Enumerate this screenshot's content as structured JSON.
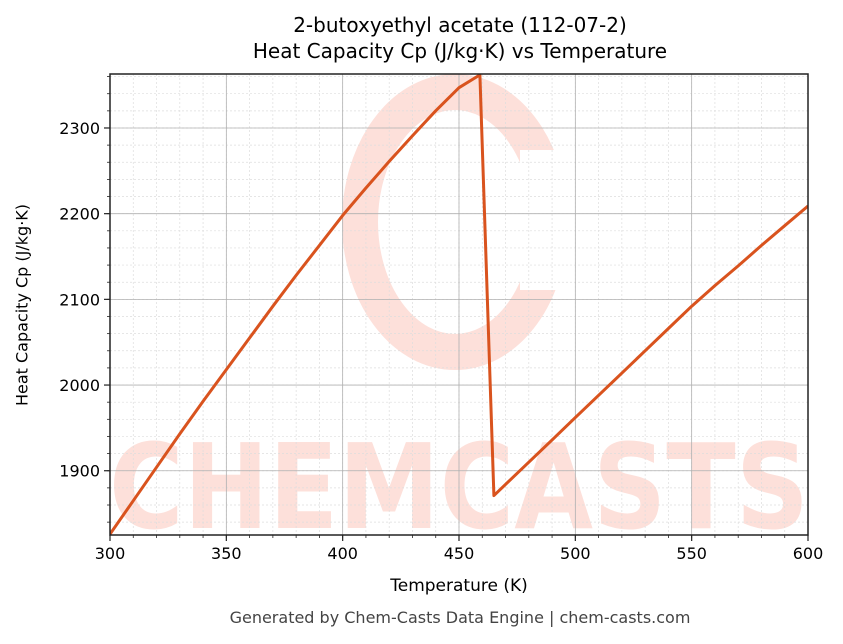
{
  "title": {
    "line1": "2-butoxyethyl acetate (112-07-2)",
    "line2": "Heat Capacity Cp (J/kg·K) vs Temperature"
  },
  "axes": {
    "xlabel": "Temperature (K)",
    "ylabel": "Heat Capacity Cp (J/kg·K)",
    "x_ticks": [
      "300",
      "350",
      "400",
      "450",
      "500",
      "550",
      "600"
    ],
    "y_ticks": [
      "1900",
      "2000",
      "2100",
      "2200",
      "2300"
    ]
  },
  "footer": "Generated by Chem-Casts Data Engine | chem-casts.com",
  "watermark": "CHEMCASTS",
  "colors": {
    "line": "#d9531e",
    "watermark": "#fde0da",
    "grid_major": "#b0b0b0",
    "grid_minor": "#dddddd"
  },
  "chart_data": {
    "type": "line",
    "title": "2-butoxyethyl acetate (112-07-2) Heat Capacity Cp (J/kg·K) vs Temperature",
    "xlabel": "Temperature (K)",
    "ylabel": "Heat Capacity Cp (J/kg·K)",
    "xlim": [
      300,
      600
    ],
    "ylim": [
      1825,
      2363
    ],
    "x_ticks": [
      300,
      350,
      400,
      450,
      500,
      550,
      600
    ],
    "y_ticks": [
      1900,
      2000,
      2100,
      2200,
      2300
    ],
    "grid": true,
    "legend": null,
    "series": [
      {
        "name": "Cp",
        "x": [
          300,
          310,
          320,
          330,
          340,
          350,
          360,
          370,
          380,
          390,
          400,
          410,
          420,
          430,
          440,
          450,
          459,
          465,
          470,
          480,
          490,
          500,
          510,
          520,
          530,
          540,
          550,
          560,
          570,
          580,
          590,
          600
        ],
        "y": [
          1826,
          1865,
          1904,
          1943,
          1981,
          2018,
          2055,
          2092,
          2128,
          2163,
          2198,
          2230,
          2261,
          2291,
          2320,
          2347,
          2362,
          1871,
          1884,
          1910,
          1936,
          1962,
          1988,
          2014,
          2040,
          2066,
          2092,
          2116,
          2139,
          2163,
          2186,
          2209
        ]
      }
    ]
  }
}
